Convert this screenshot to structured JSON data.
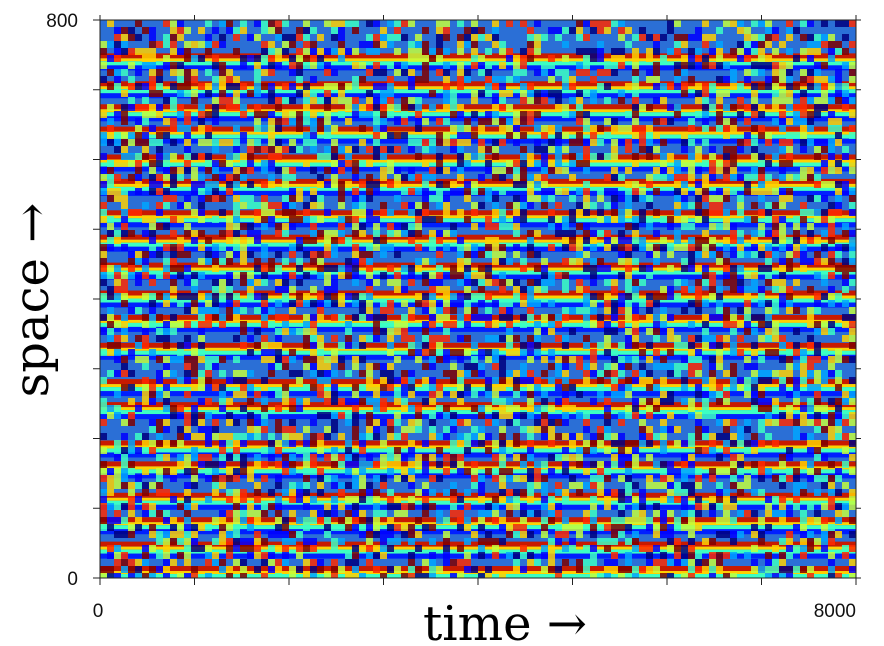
{
  "chart_data": {
    "type": "heatmap",
    "title": "",
    "xlabel": "time  →",
    "ylabel": "space  →",
    "xlim": [
      0,
      8000
    ],
    "ylim": [
      0,
      800
    ],
    "x_tick_labels": [
      "0",
      "8000"
    ],
    "y_tick_labels": [
      "0",
      "800"
    ],
    "grid": false,
    "colormap": [
      "#00007f",
      "#0000ff",
      "#00a6ff",
      "#3cffc3",
      "#c3ff3c",
      "#ffd100",
      "#ff2a00",
      "#7f0000"
    ],
    "description_of_values": "space-time phase field showing horizontal stripe bands (wavefronts) over a noisy background",
    "band_y_positions": [
      10,
      45,
      80,
      115,
      160,
      190,
      245,
      278,
      330,
      370,
      405,
      445,
      485,
      520,
      565,
      600,
      640,
      672,
      705,
      745
    ]
  }
}
